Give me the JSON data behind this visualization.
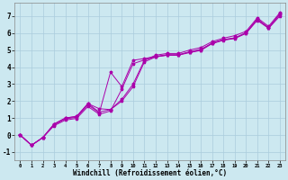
{
  "background_color": "#cce8f0",
  "grid_color": "#aaccdd",
  "line_color": "#aa00aa",
  "xlabel": "Windchill (Refroidissement éolien,°C)",
  "xlim": [
    -0.5,
    23.5
  ],
  "ylim": [
    -1.5,
    7.8
  ],
  "yticks": [
    -1,
    0,
    1,
    2,
    3,
    4,
    5,
    6,
    7
  ],
  "xticks": [
    0,
    1,
    2,
    3,
    4,
    5,
    6,
    7,
    8,
    9,
    10,
    11,
    12,
    13,
    14,
    15,
    16,
    17,
    18,
    19,
    20,
    21,
    22,
    23
  ],
  "xtick_labels": [
    "0",
    "1",
    "2",
    "3",
    "4",
    "5",
    "6",
    "7",
    "8",
    "9",
    "10",
    "11",
    "12",
    "13",
    "14",
    "15",
    "16",
    "17",
    "18",
    "19",
    "20",
    "21",
    "22",
    "23"
  ],
  "series": [
    {
      "x": [
        0,
        1,
        2,
        3,
        4,
        5,
        6,
        7,
        8,
        9,
        10,
        11,
        12,
        13,
        14,
        15,
        16,
        17,
        18,
        19,
        20,
        21,
        22,
        23
      ],
      "y": [
        0.0,
        -0.6,
        -0.15,
        0.65,
        1.0,
        1.1,
        1.85,
        1.55,
        1.5,
        2.1,
        3.0,
        4.4,
        4.7,
        4.8,
        4.8,
        5.0,
        5.15,
        5.5,
        5.7,
        5.85,
        6.1,
        6.9,
        6.4,
        7.2
      ]
    },
    {
      "x": [
        0,
        1,
        2,
        3,
        4,
        5,
        6,
        7,
        8,
        9,
        10,
        11,
        12,
        13,
        14,
        15,
        16,
        17,
        18,
        19,
        20,
        21,
        22,
        23
      ],
      "y": [
        0.0,
        -0.6,
        -0.15,
        0.65,
        1.0,
        1.1,
        1.85,
        1.35,
        1.5,
        2.0,
        2.85,
        4.3,
        4.6,
        4.7,
        4.7,
        4.9,
        5.05,
        5.4,
        5.6,
        5.7,
        6.0,
        6.8,
        6.3,
        7.1
      ]
    },
    {
      "x": [
        0,
        1,
        2,
        3,
        4,
        5,
        6,
        7,
        8,
        9,
        10,
        11,
        12,
        13,
        14,
        15,
        16,
        17,
        18,
        19,
        20,
        21,
        22,
        23
      ],
      "y": [
        0.0,
        -0.6,
        -0.15,
        0.6,
        0.95,
        1.05,
        1.78,
        1.3,
        3.7,
        2.85,
        4.4,
        4.5,
        4.63,
        4.73,
        4.73,
        4.88,
        5.0,
        5.42,
        5.62,
        5.72,
        6.02,
        6.83,
        6.32,
        7.13
      ]
    },
    {
      "x": [
        0,
        1,
        2,
        3,
        4,
        5,
        6,
        7,
        8,
        9,
        10,
        11,
        12,
        13,
        14,
        15,
        16,
        17,
        18,
        19,
        20,
        21,
        22,
        23
      ],
      "y": [
        0.0,
        -0.6,
        -0.15,
        0.55,
        0.88,
        0.98,
        1.68,
        1.22,
        1.42,
        2.7,
        4.2,
        4.42,
        4.6,
        4.7,
        4.7,
        4.85,
        4.98,
        5.38,
        5.58,
        5.68,
        5.98,
        6.75,
        6.28,
        7.0
      ]
    }
  ]
}
